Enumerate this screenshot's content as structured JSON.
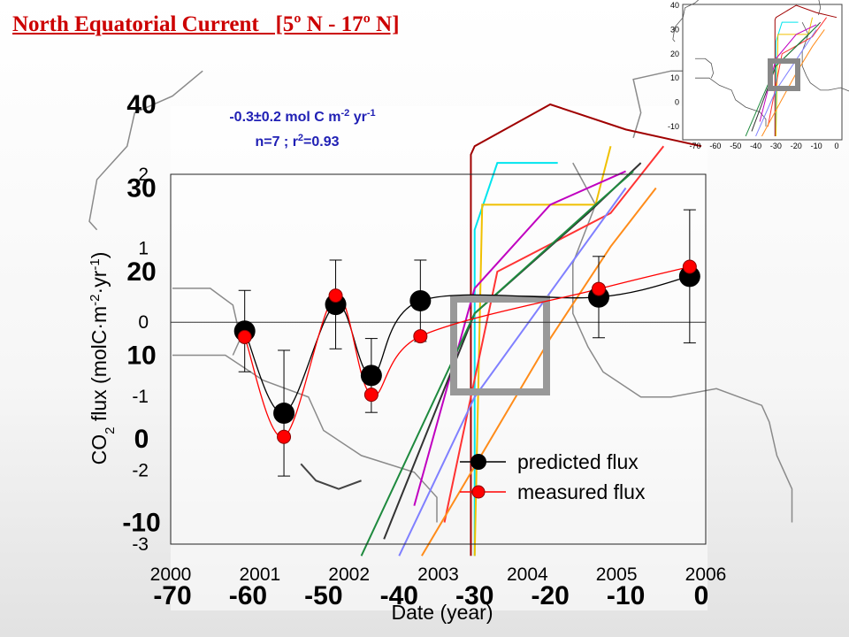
{
  "slide": {
    "title": "North Equatorial Current   [5º N - 17º N]"
  },
  "chart_data": {
    "type": "scatter",
    "title": "",
    "annotation": {
      "line1": "-0.3±0.2 mol C m",
      "line1_sup1": "-2",
      "line1_mid": " yr",
      "line1_sup2": "-1",
      "line2": "n=7  ;  r",
      "line2_sup": "2",
      "line2_end": "=0.93"
    },
    "xlabel": "Date (year)",
    "ylabel_parts": {
      "a": "CO",
      "sub": "2",
      "b": " flux (molC·m",
      "sup1": "-2",
      "c": "·yr",
      "sup2": "-1",
      "d": ")"
    },
    "xlim": [
      2000,
      2006
    ],
    "ylim": [
      -3,
      2
    ],
    "x_ticks": [
      "2000",
      "2001",
      "2002",
      "2003",
      "2004",
      "2005",
      "2006"
    ],
    "y_ticks": [
      "2",
      "1",
      "0",
      "-1",
      "-2",
      "-3"
    ],
    "series": [
      {
        "name": "predicted flux",
        "color": "#000000",
        "x": [
          2000.83,
          2001.27,
          2001.85,
          2002.25,
          2002.8,
          2004.8,
          2005.82
        ],
        "y": [
          -0.12,
          -1.23,
          0.24,
          -0.72,
          0.29,
          0.34,
          0.62
        ],
        "err": [
          0.55,
          0.85,
          0.6,
          0.5,
          0.55,
          0.55,
          0.9
        ]
      },
      {
        "name": "measured flux",
        "color": "#ff0000",
        "x": [
          2000.83,
          2001.27,
          2001.85,
          2002.25,
          2002.8,
          2004.8,
          2005.82
        ],
        "y": [
          -0.2,
          -1.55,
          0.36,
          -0.98,
          -0.19,
          0.45,
          0.75
        ]
      }
    ],
    "zero_line": 0,
    "legend_position": "bottom-right"
  },
  "background_map": {
    "lat_ticks": [
      "40",
      "30",
      "20",
      "10",
      "0",
      "-10"
    ],
    "lon_ticks": [
      "-70",
      "-60",
      "-50",
      "-40",
      "-30",
      "-20",
      "-10",
      "0"
    ]
  },
  "inset_map": {
    "lat_ticks": [
      "40",
      "30",
      "20",
      "10",
      "0",
      "-10"
    ],
    "lon_ticks": [
      "-70",
      "-60",
      "-50",
      "-40",
      "-30",
      "-20",
      "-10",
      "0"
    ]
  }
}
